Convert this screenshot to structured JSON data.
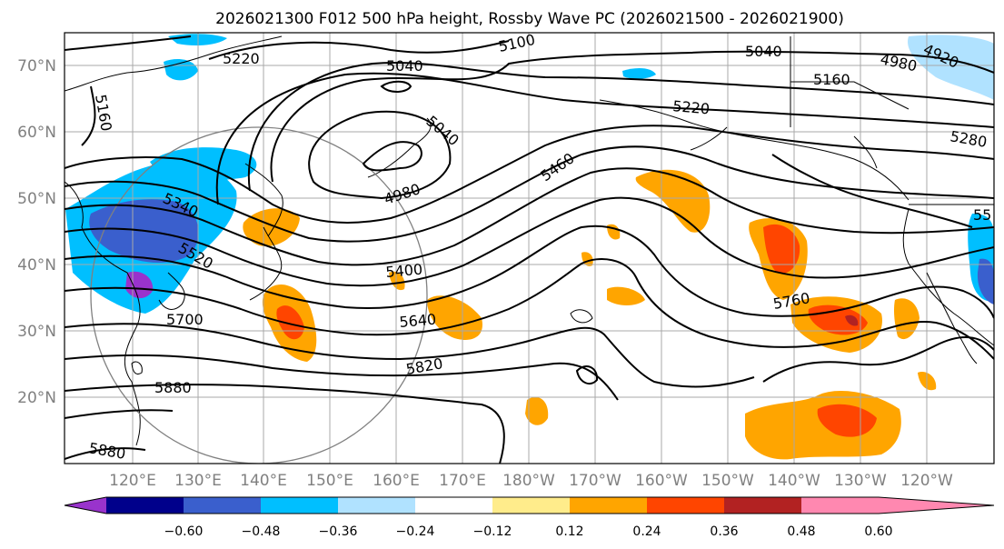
{
  "title": "2026021300 F012 500 hPa height, Rossby Wave PC (2026021500 - 2026021900)",
  "lat_labels": [
    "70°N",
    "60°N",
    "50°N",
    "40°N",
    "30°N",
    "20°N"
  ],
  "lon_labels": [
    "120°E",
    "130°E",
    "140°E",
    "150°E",
    "160°E",
    "170°E",
    "180°W",
    "170°W",
    "160°W",
    "150°W",
    "140°W",
    "130°W",
    "120°W"
  ],
  "colorbar": {
    "ticks": [
      "−0.60",
      "−0.48",
      "−0.36",
      "−0.24",
      "−0.12",
      "0.12",
      "0.24",
      "0.36",
      "0.48",
      "0.60"
    ],
    "colors": [
      "#9933cc",
      "#00008b",
      "#3a5fcd",
      "#00bfff",
      "#b0e2ff",
      "#ffffff",
      "#ffec8b",
      "#ffa500",
      "#ff4500",
      "#b22222",
      "#ff88b0"
    ]
  },
  "contour_labels": [
    "5220",
    "5160",
    "5040",
    "5100",
    "5040",
    "4980",
    "4920",
    "5160",
    "5220",
    "5280",
    "5040",
    "4980",
    "5460",
    "5340",
    "5520",
    "5400",
    "5640",
    "5700",
    "5820",
    "5880",
    "5880",
    "5760",
    "55"
  ]
}
